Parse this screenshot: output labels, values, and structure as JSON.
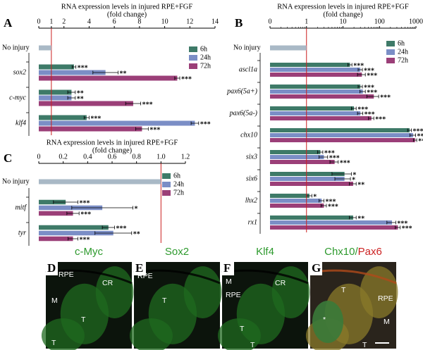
{
  "chart_data": [
    {
      "type": "bar",
      "orientation": "horizontal",
      "panel_label": "A",
      "title": "RNA expression levels in injured RPE+FGF",
      "subtitle": "(fold change)",
      "control": {
        "label": "No injury",
        "value": 1,
        "color": "#a9b9c6"
      },
      "categories": [
        "sox2",
        "c-myc",
        "klf4"
      ],
      "series": [
        {
          "name": "6h",
          "color": "#3e7a68",
          "values": [
            2.8,
            2.6,
            3.8
          ],
          "errors": [
            0.15,
            0.3,
            0.2
          ],
          "stars": [
            "***",
            "**",
            "***"
          ]
        },
        {
          "name": "24h",
          "color": "#7b8ec6",
          "values": [
            5.3,
            2.6,
            12.4
          ],
          "errors": [
            1.0,
            0.3,
            0.3
          ],
          "stars": [
            "**",
            "**",
            "***"
          ]
        },
        {
          "name": "72h",
          "color": "#9b3f78",
          "values": [
            11,
            7.5,
            8.2
          ],
          "errors": [
            0.2,
            0.6,
            0.5
          ],
          "stars": [
            "***",
            "***",
            "***"
          ]
        }
      ],
      "xlim": [
        0,
        14
      ],
      "xticks": [
        0,
        1,
        2,
        4,
        6,
        8,
        10,
        12,
        14
      ],
      "log": false,
      "reference_line": 1,
      "reference_color": "#cc1f1f"
    },
    {
      "type": "bar",
      "orientation": "horizontal",
      "panel_label": "B",
      "title": "RNA expression levels in injured RPE+FGF",
      "subtitle": "(fold change)",
      "control": {
        "label": "No injury",
        "value": 1,
        "color": "#a9b9c6"
      },
      "categories": [
        "ascl1a",
        "pax6(5a+)",
        "pax6(5a-)",
        "chx10",
        "six3",
        "six6",
        "lhx2",
        "rx1"
      ],
      "series": [
        {
          "name": "6h",
          "color": "#3e7a68",
          "values": [
            15.6,
            30,
            20,
            670,
            2.4,
            11,
            1.2,
            19
          ],
          "errors": [
            2,
            4,
            3,
            80,
            0.4,
            6,
            0.2,
            4
          ],
          "stars": [
            "***",
            "***",
            "***",
            "***",
            "***",
            "*",
            "*",
            "**"
          ]
        },
        {
          "name": "24h",
          "color": "#7b8ec6",
          "values": [
            30,
            35,
            30,
            830,
            3,
            11,
            2.6,
            220
          ],
          "errors": [
            4,
            6,
            5,
            150,
            0.8,
            5,
            0.4,
            60
          ],
          "stars": [
            "***",
            "***",
            "***",
            "***",
            "***",
            "*",
            "***",
            "***"
          ]
        },
        {
          "name": "72h",
          "color": "#9b3f78",
          "values": [
            33,
            70,
            60,
            950,
            5.9,
            19,
            3,
            320
          ],
          "errors": [
            8,
            25,
            10,
            100,
            1.5,
            4,
            0.5,
            50
          ],
          "stars": [
            "***",
            "***",
            "***",
            "***",
            "***",
            "**",
            "***",
            "***"
          ]
        }
      ],
      "xlim": [
        0.1,
        1000
      ],
      "xticks": [
        {
          "value": 0.1,
          "label": "0"
        },
        1,
        10,
        100,
        1000
      ],
      "log": true,
      "reference_line": 1,
      "reference_color": "#cc1f1f"
    },
    {
      "type": "bar",
      "orientation": "horizontal",
      "panel_label": "C",
      "title": "RNA expression levels in injured RPE+FGF",
      "subtitle": "(fold change)",
      "control": {
        "label": "No injury",
        "value": 1,
        "color": "#a9b9c6"
      },
      "categories": [
        "mitf",
        "tyr"
      ],
      "series": [
        {
          "name": "6h",
          "color": "#3e7a68",
          "values": [
            0.22,
            0.57
          ],
          "errors": [
            0.1,
            0.05
          ],
          "stars": [
            "***",
            "***"
          ]
        },
        {
          "name": "24h",
          "color": "#7b8ec6",
          "values": [
            0.52,
            0.61
          ],
          "errors": [
            0.25,
            0.15
          ],
          "stars": [
            "*",
            "**"
          ]
        },
        {
          "name": "72h",
          "color": "#9b3f78",
          "values": [
            0.28,
            0.28
          ],
          "errors": [
            0.05,
            0.04
          ],
          "stars": [
            "***",
            "***"
          ]
        }
      ],
      "xlim": [
        0,
        1.2
      ],
      "xticks": [
        0,
        0.2,
        0.4,
        0.6,
        0.8,
        {
          "value": 1,
          "label": "1.0"
        },
        1.2
      ],
      "log": false,
      "reference_line": 1,
      "reference_color": "#cc1f1f"
    }
  ],
  "panels": [
    {
      "letter": "D",
      "title": [
        {
          "text": "c-Myc",
          "color": "#2e9a2e"
        }
      ],
      "labels": [
        "RPE",
        "M",
        "CR",
        "T",
        "T"
      ]
    },
    {
      "letter": "E",
      "title": [
        {
          "text": "Sox2",
          "color": "#2e9a2e"
        }
      ],
      "labels": [
        "RPE",
        "T"
      ]
    },
    {
      "letter": "F",
      "title": [
        {
          "text": "Klf4",
          "color": "#2e9a2e"
        }
      ],
      "labels": [
        "M",
        "RPE",
        "CR",
        "T",
        "T"
      ]
    },
    {
      "letter": "G",
      "title": [
        {
          "text": "Chx10",
          "color": "#2e9a2e"
        },
        {
          "text": "/",
          "color": "#2e9a2e"
        },
        {
          "text": "Pax6",
          "color": "#cc2222"
        }
      ],
      "labels": [
        "RPE",
        "T",
        "M",
        "T",
        "*"
      ]
    }
  ]
}
